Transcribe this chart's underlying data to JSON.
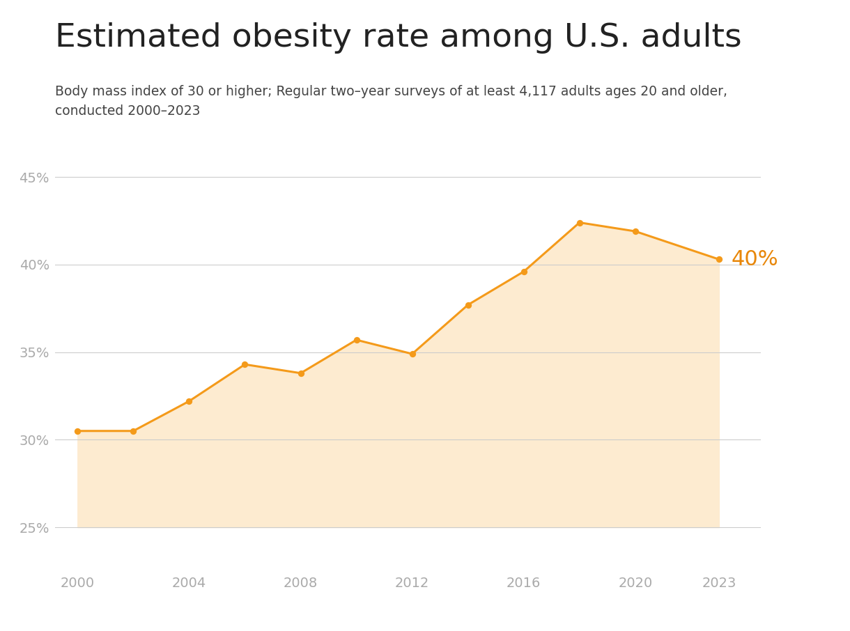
{
  "title": "Estimated obesity rate among U.S. adults",
  "subtitle_line1": "Body mass index of 30 or higher; Regular two–year surveys of at least 4,117 adults ages 20 and older,",
  "subtitle_line2": "conducted 2000–2023",
  "years": [
    2000,
    2002,
    2004,
    2006,
    2008,
    2010,
    2012,
    2014,
    2016,
    2018,
    2020,
    2023
  ],
  "values": [
    30.5,
    30.5,
    32.2,
    34.3,
    33.8,
    35.7,
    34.9,
    37.7,
    39.6,
    42.4,
    41.9,
    40.3
  ],
  "line_color": "#F49A1A",
  "fill_color": "#FDEBD0",
  "marker_color": "#F49A1A",
  "annotation_text": "40%",
  "annotation_color": "#E8870A",
  "yticks": [
    25,
    30,
    35,
    40,
    45
  ],
  "ylim": [
    22.5,
    47
  ],
  "xticks": [
    2000,
    2004,
    2008,
    2012,
    2016,
    2020,
    2023
  ],
  "xlim": [
    1999.2,
    2024.5
  ],
  "background_color": "#FFFFFF",
  "grid_color": "#CCCCCC",
  "tick_color": "#AAAAAA",
  "title_color": "#222222",
  "subtitle_color": "#444444",
  "title_fontsize": 34,
  "subtitle_fontsize": 13.5,
  "tick_fontsize": 14,
  "annotation_fontsize": 22,
  "fill_baseline": 25
}
